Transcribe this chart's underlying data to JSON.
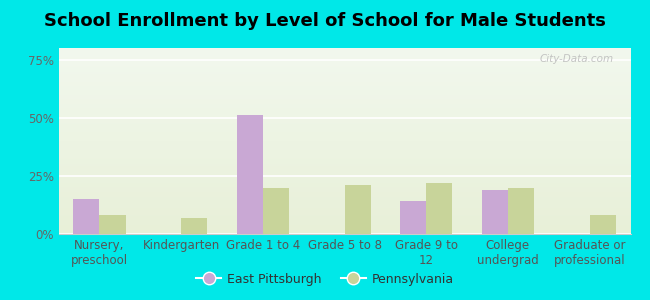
{
  "title": "School Enrollment by Level of School for Male Students",
  "categories": [
    "Nursery,\npreschool",
    "Kindergarten",
    "Grade 1 to 4",
    "Grade 5 to 8",
    "Grade 9 to\n12",
    "College\nundergrad",
    "Graduate or\nprofessional"
  ],
  "east_pittsburgh": [
    15,
    0,
    51,
    0,
    14,
    19,
    0
  ],
  "pennsylvania": [
    8,
    7,
    20,
    21,
    22,
    20,
    8
  ],
  "bar_color_ep": "#c9a8d4",
  "bar_color_pa": "#c8d49a",
  "background_outer": "#00e8e8",
  "grad_color_top": "#f2f8ee",
  "grad_color_bottom": "#e8f0d8",
  "yticks": [
    0,
    25,
    50,
    75
  ],
  "ylim": [
    0,
    80
  ],
  "title_fontsize": 13,
  "tick_fontsize": 8.5,
  "legend_ep": "East Pittsburgh",
  "legend_pa": "Pennsylvania",
  "watermark": "City-Data.com"
}
